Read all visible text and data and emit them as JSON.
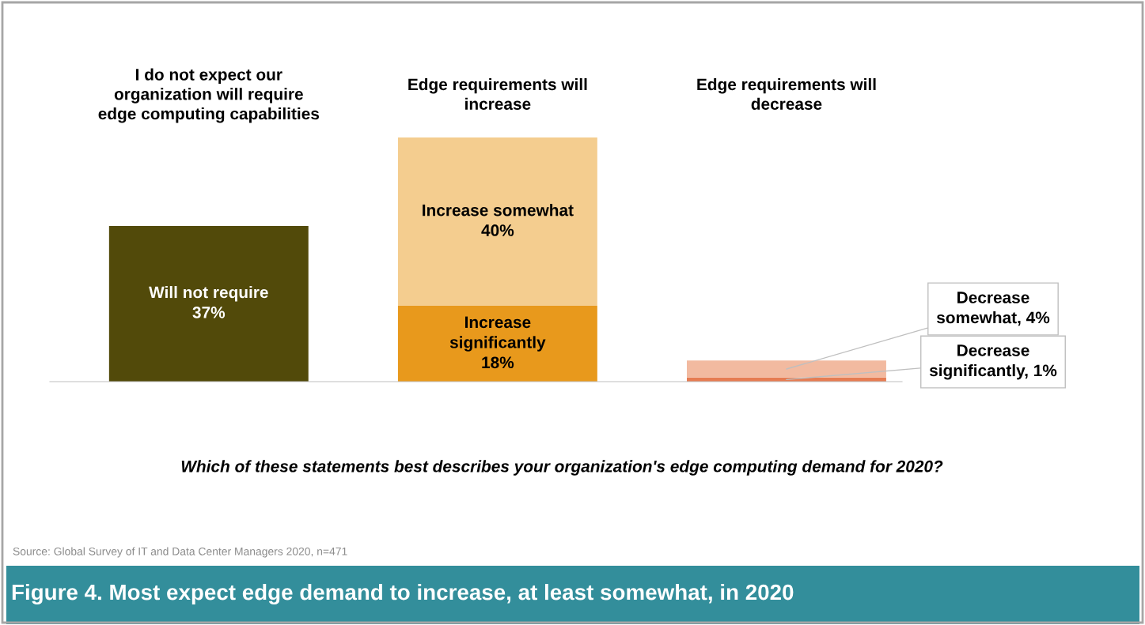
{
  "chart_data": {
    "type": "bar",
    "stacked": true,
    "title": "Figure 4. Most expect edge demand to increase, at least somewhat, in 2020",
    "xlabel": "Which of these statements best describes your organization's edge computing demand for 2020?",
    "categories": [
      "I do not expect our\norganization will require\nedge computing capabilities",
      "Edge requirements will\nincrease",
      "Edge requirements will\ndecrease"
    ],
    "series": [
      {
        "colors": [
          "#524a0a",
          "#e8991c",
          "#e67c52"
        ],
        "values": [
          37,
          18,
          1
        ],
        "value_labels": [
          "Will not require\n37%",
          "Increase\nsignificantly\n18%",
          "Decrease\nsignificantly, 1%"
        ]
      },
      {
        "colors": [
          null,
          "#f4cd8f",
          "#f2baa0"
        ],
        "values": [
          null,
          40,
          4
        ],
        "value_labels": [
          null,
          "Increase somewhat\n40%",
          "Decrease\nsomewhat, 4%"
        ]
      }
    ],
    "annotations": [
      "Source: Global Survey of IT and Data Center Managers 2020, n=471"
    ]
  }
}
